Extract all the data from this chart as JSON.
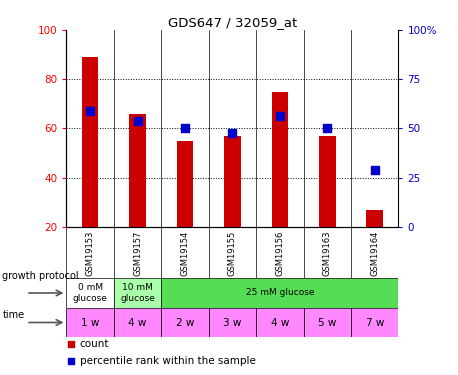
{
  "title": "GDS647 / 32059_at",
  "samples": [
    "GSM19153",
    "GSM19157",
    "GSM19154",
    "GSM19155",
    "GSM19156",
    "GSM19163",
    "GSM19164"
  ],
  "counts": [
    89,
    66,
    55,
    57,
    75,
    57,
    27
  ],
  "percentile_ranks_left_scale": [
    67,
    63,
    60,
    58,
    65,
    60,
    43
  ],
  "bar_color": "#cc0000",
  "dot_color": "#0000cc",
  "ylim_left": [
    20,
    100
  ],
  "yticks_left": [
    20,
    40,
    60,
    80,
    100
  ],
  "ytick_labels_right": [
    "0",
    "25",
    "50",
    "75",
    "100%"
  ],
  "growth_protocol_data": [
    {
      "xlims": [
        -0.5,
        0.5
      ],
      "color": "#ffffff",
      "label": "0 mM\nglucose"
    },
    {
      "xlims": [
        0.5,
        1.5
      ],
      "color": "#aaffaa",
      "label": "10 mM\nglucose"
    },
    {
      "xlims": [
        1.5,
        6.5
      ],
      "color": "#55dd55",
      "label": "25 mM glucose"
    }
  ],
  "time_labels": [
    "1 w",
    "4 w",
    "2 w",
    "3 w",
    "4 w",
    "5 w",
    "7 w"
  ],
  "time_color": "#ff88ff",
  "bg_color": "#ffffff",
  "sample_bg": "#cccccc",
  "bar_width": 0.35,
  "dot_size": 28
}
